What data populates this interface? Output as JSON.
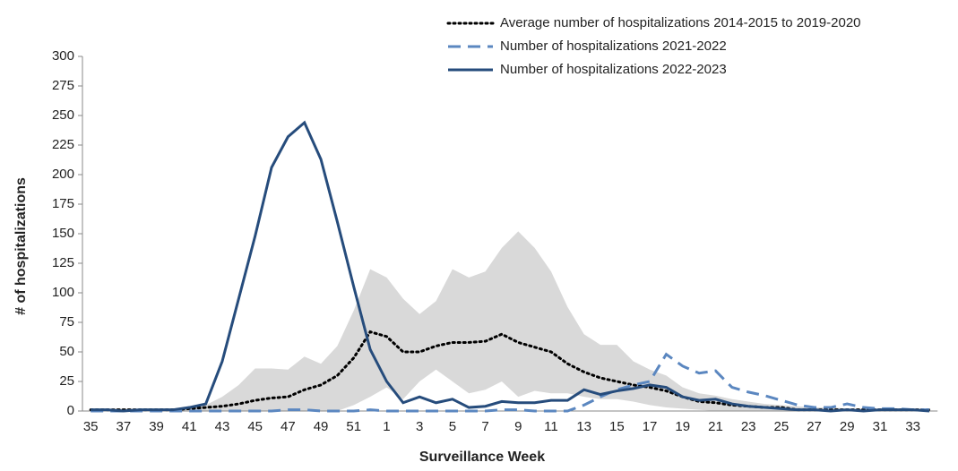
{
  "chart_data": {
    "type": "line",
    "x_label": "Surveillance Week",
    "y_label": "# of hospitalizations",
    "categories": [
      "35",
      null,
      "37",
      null,
      "39",
      null,
      "41",
      null,
      "43",
      null,
      "45",
      null,
      "47",
      null,
      "49",
      null,
      "51",
      null,
      "1",
      null,
      "3",
      null,
      "5",
      null,
      "7",
      null,
      "9",
      null,
      "11",
      null,
      "13",
      null,
      "15",
      null,
      "17",
      null,
      "19",
      null,
      "21",
      null,
      "23",
      null,
      "25",
      null,
      "27",
      null,
      "29",
      null,
      "31",
      null,
      "33",
      null
    ],
    "ylim": [
      0,
      300
    ],
    "yticks": [
      0,
      25,
      50,
      75,
      100,
      125,
      150,
      175,
      200,
      225,
      250,
      275,
      300
    ],
    "range": {
      "color": "#d9d9d9",
      "upper": [
        2,
        2,
        2,
        2,
        2,
        2,
        3,
        5,
        12,
        22,
        36,
        36,
        35,
        46,
        40,
        55,
        85,
        120,
        113,
        95,
        82,
        93,
        120,
        113,
        118,
        138,
        152,
        138,
        118,
        88,
        65,
        56,
        56,
        42,
        35,
        30,
        20,
        15,
        13,
        10,
        8,
        6,
        5,
        4,
        3,
        3,
        2,
        2,
        2,
        2,
        2,
        2
      ],
      "lower": [
        0,
        0,
        0,
        0,
        0,
        0,
        0,
        0,
        0,
        0,
        0,
        0,
        0,
        0,
        0,
        0,
        5,
        12,
        20,
        10,
        25,
        35,
        25,
        15,
        18,
        25,
        12,
        17,
        15,
        15,
        12,
        10,
        10,
        8,
        5,
        3,
        2,
        1,
        0,
        0,
        0,
        0,
        0,
        0,
        0,
        0,
        0,
        0,
        0,
        0,
        0,
        0
      ]
    },
    "series": [
      {
        "name": "Average number of hospitalizations 2014-2015 to 2019-2020",
        "color": "#000000",
        "style": "dotted",
        "values": [
          1,
          1,
          1,
          1,
          1,
          1,
          2,
          3,
          4,
          6,
          9,
          11,
          12,
          18,
          22,
          30,
          45,
          67,
          63,
          50,
          50,
          55,
          58,
          58,
          59,
          65,
          58,
          54,
          50,
          40,
          33,
          28,
          25,
          22,
          20,
          17,
          12,
          8,
          7,
          5,
          4,
          3,
          3,
          1,
          1,
          1,
          1,
          1,
          1,
          1,
          1,
          1
        ]
      },
      {
        "name": "Number of hospitalizations 2021-2022",
        "color": "#5b87c0",
        "style": "dashed",
        "values": [
          0,
          0,
          0,
          0,
          0,
          0,
          0,
          0,
          0,
          0,
          0,
          0,
          1,
          1,
          0,
          0,
          0,
          1,
          0,
          0,
          0,
          0,
          0,
          0,
          0,
          1,
          1,
          0,
          0,
          0,
          5,
          12,
          18,
          22,
          25,
          48,
          38,
          32,
          34,
          20,
          16,
          13,
          9,
          5,
          3,
          3,
          6,
          3,
          2,
          2,
          1,
          1
        ]
      },
      {
        "name": "Number of hospitalizations 2022-2023",
        "color": "#264c7c",
        "style": "solid",
        "values": [
          1,
          1,
          0,
          1,
          1,
          1,
          3,
          6,
          42,
          95,
          148,
          206,
          232,
          244,
          213,
          160,
          105,
          52,
          25,
          7,
          12,
          7,
          10,
          3,
          4,
          8,
          7,
          7,
          9,
          9,
          18,
          14,
          17,
          19,
          22,
          20,
          12,
          9,
          10,
          6,
          4,
          3,
          2,
          1,
          1,
          0,
          1,
          0,
          1,
          1,
          1,
          0
        ]
      }
    ]
  }
}
